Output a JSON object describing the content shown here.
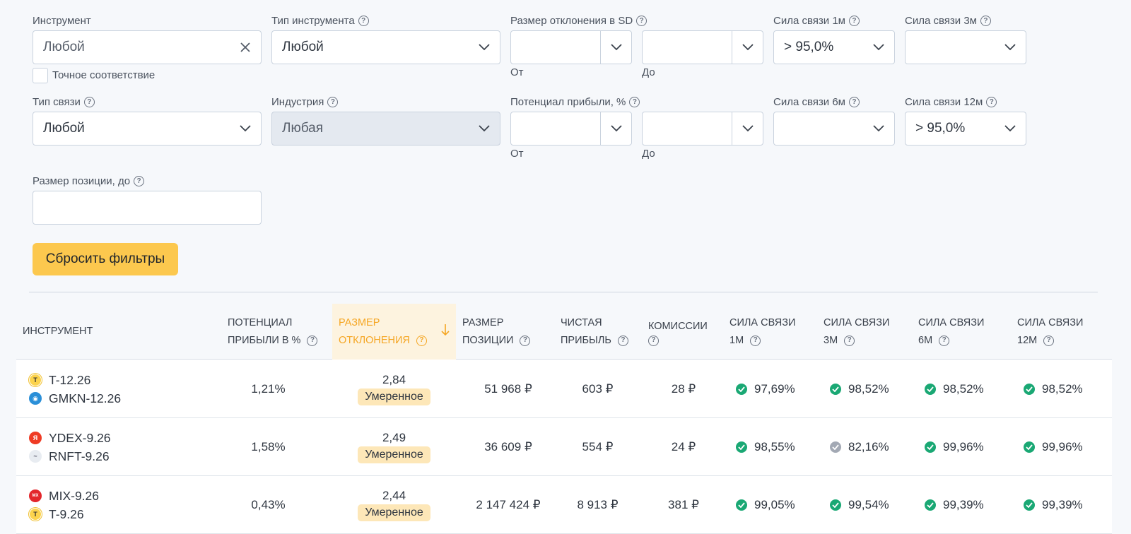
{
  "filters": {
    "instrument": {
      "label": "Инструмент",
      "value": "Любой",
      "exact_match_label": "Точное соответствие"
    },
    "instrument_type": {
      "label": "Тип инструмента",
      "value": "Любой"
    },
    "deviation_sd": {
      "label": "Размер отклонения в SD",
      "from_label": "От",
      "to_label": "До",
      "from_value": "",
      "to_value": ""
    },
    "link_strength_1m": {
      "label": "Сила связи 1м",
      "value": "> 95,0%"
    },
    "link_strength_3m": {
      "label": "Сила связи 3м",
      "value": ""
    },
    "link_type": {
      "label": "Тип связи",
      "value": "Любой"
    },
    "industry": {
      "label": "Индустрия",
      "value": "Любая"
    },
    "profit_potential": {
      "label": "Потенциал прибыли, %",
      "from_label": "От",
      "to_label": "До",
      "from_value": "",
      "to_value": ""
    },
    "link_strength_6m": {
      "label": "Сила связи 6м",
      "value": ""
    },
    "link_strength_12m": {
      "label": "Сила связи 12м",
      "value": "> 95,0%"
    },
    "position_size": {
      "label": "Размер позиции, до",
      "value": ""
    },
    "reset_label": "Сбросить фильтры"
  },
  "table": {
    "headers": {
      "instrument": "Инструмент",
      "profit_l1": "Потенциал",
      "profit_l2": "прибыли в %",
      "dev_l1": "Размер",
      "dev_l2": "отклонения",
      "pos_l1": "Размер",
      "pos_l2": "позиции",
      "net_l1": "Чистая",
      "net_l2": "прибыль",
      "comm_l1": "Комиссии",
      "s1_l1": "Сила связи",
      "s1_l2": "1м",
      "s3_l1": "Сила связи",
      "s3_l2": "3м",
      "s6_l1": "Сила связи",
      "s6_l2": "6м",
      "s12_l1": "Сила связи",
      "s12_l2": "12м"
    },
    "rows": [
      {
        "inst1": "T-12.26",
        "inst2": "GMKN-12.26",
        "profit": "1,21%",
        "deviation": "2,84",
        "badge": "Умеренное",
        "position": "51 968 ₽",
        "net": "603 ₽",
        "commission": "28 ₽",
        "s1": "97,69%",
        "s3": "98,52%",
        "s6": "98,52%",
        "s12": "98,52%"
      },
      {
        "inst1": "YDEX-9.26",
        "inst2": "RNFT-9.26",
        "profit": "1,58%",
        "deviation": "2,49",
        "badge": "Умеренное",
        "position": "36 609 ₽",
        "net": "554 ₽",
        "commission": "24 ₽",
        "s1": "98,55%",
        "s3": "82,16%",
        "s6": "99,96%",
        "s12": "99,96%"
      },
      {
        "inst1": "MIX-9.26",
        "inst2": "T-9.26",
        "profit": "0,43%",
        "deviation": "2,44",
        "badge": "Умеренное",
        "position": "2 147 424 ₽",
        "net": "8 913 ₽",
        "commission": "381 ₽",
        "s1": "99,05%",
        "s3": "99,54%",
        "s6": "99,39%",
        "s12": "99,39%"
      }
    ]
  },
  "colors": {
    "accent": "#fcc84e",
    "sort_active": "#f5a623",
    "ok": "#1aa874",
    "neutral": "#a3a9b4"
  }
}
